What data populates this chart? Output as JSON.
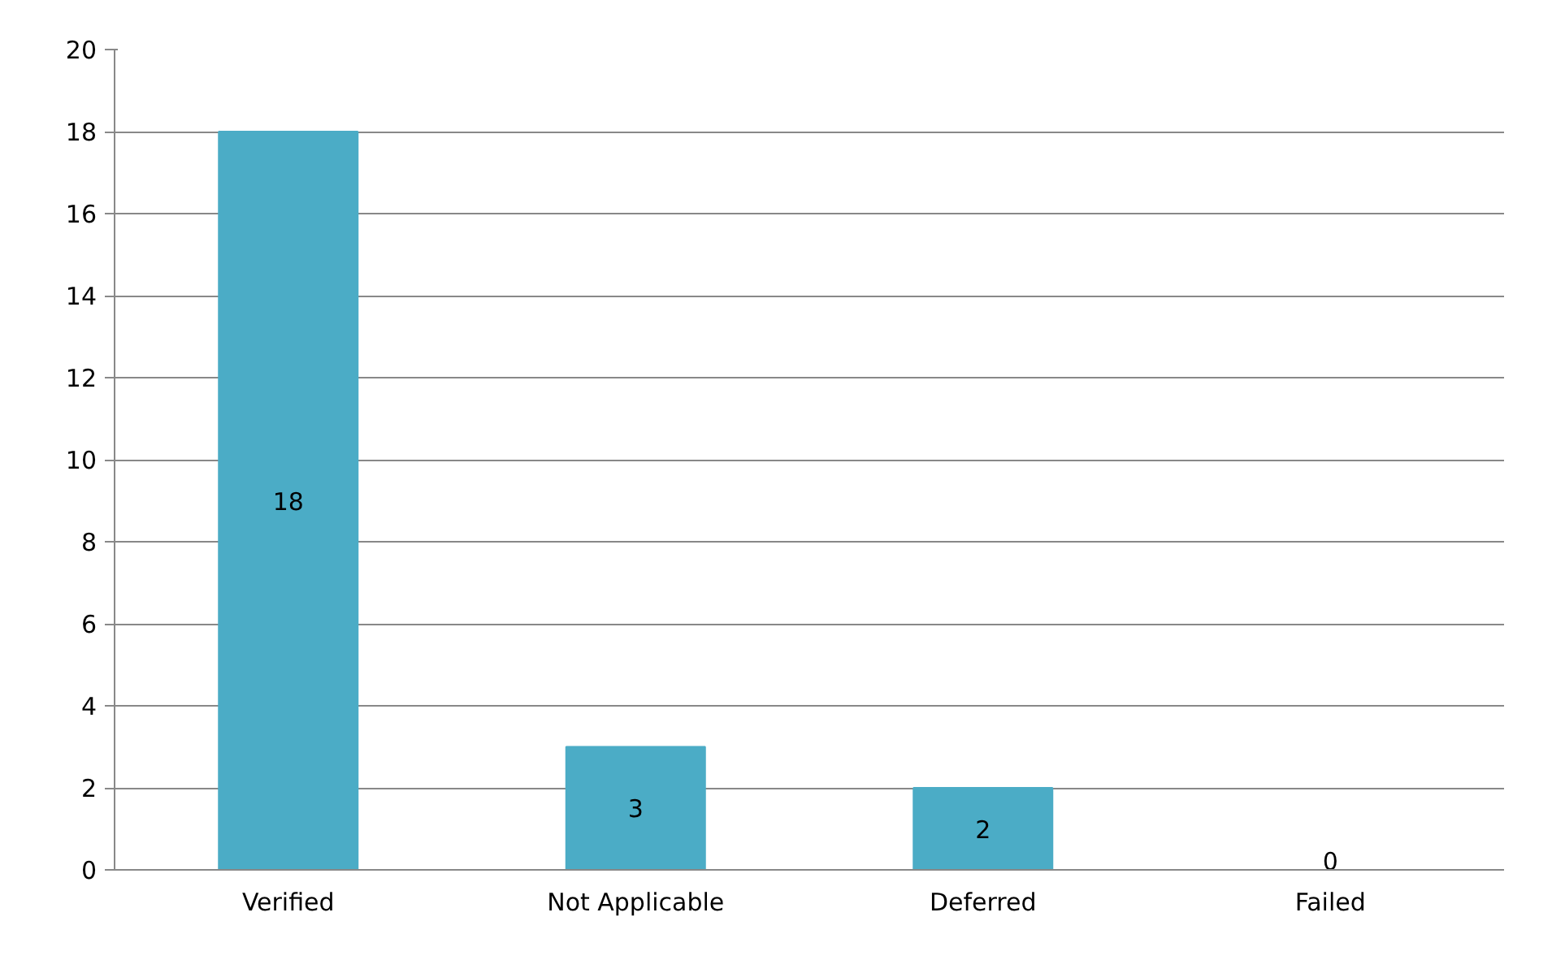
{
  "chart_data": {
    "type": "bar",
    "categories": [
      "Verified",
      "Not Applicable",
      "Deferred",
      "Failed"
    ],
    "values": [
      18,
      3,
      2,
      0
    ],
    "color": "#4bacc6",
    "ylim": [
      0,
      20
    ],
    "yticks": [
      0,
      2,
      4,
      6,
      8,
      10,
      12,
      14,
      16,
      18,
      20
    ],
    "grid": "y",
    "data_labels": true
  }
}
